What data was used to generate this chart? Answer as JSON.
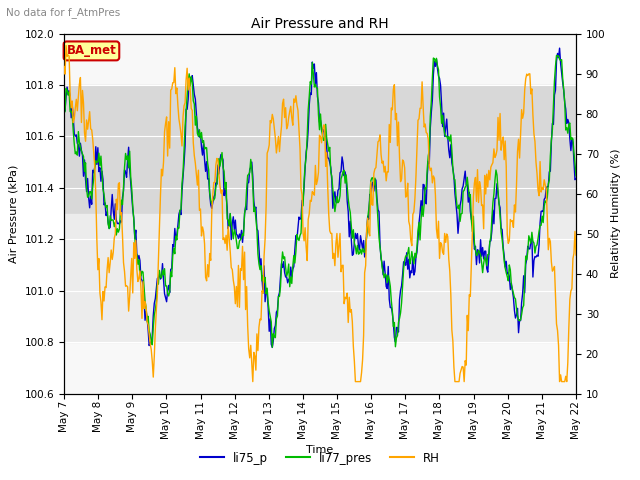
{
  "title": "Air Pressure and RH",
  "subtitle": "No data for f_AtmPres",
  "ylabel_left": "Air Pressure (kPa)",
  "ylabel_right": "Relativity Humidity (%)",
  "xlabel": "Time",
  "ylim_left": [
    100.6,
    102.0
  ],
  "ylim_right": [
    10,
    100
  ],
  "yticks_left": [
    100.6,
    100.8,
    101.0,
    101.2,
    101.4,
    101.6,
    101.8,
    102.0
  ],
  "yticks_right": [
    10,
    20,
    30,
    40,
    50,
    60,
    70,
    80,
    90,
    100
  ],
  "xtick_labels": [
    "May 7",
    "May 8",
    "May 9",
    "May 10",
    "May 11",
    "May 12",
    "May 13",
    "May 14",
    "May 15",
    "May 16",
    "May 17",
    "May 18",
    "May 19",
    "May 20",
    "May 21",
    "May 22"
  ],
  "legend_labels": [
    "li75_p",
    "li77_pres",
    "RH"
  ],
  "legend_colors": [
    "#0000cc",
    "#00bb00",
    "#ffa500"
  ],
  "line_colors": [
    "#0000cc",
    "#00bb00",
    "#ffa500"
  ],
  "annotation_text": "BA_met",
  "annotation_color": "#cc0000",
  "annotation_bg": "#ffff99",
  "n_points": 500,
  "shading_color": "#d8d8d8"
}
